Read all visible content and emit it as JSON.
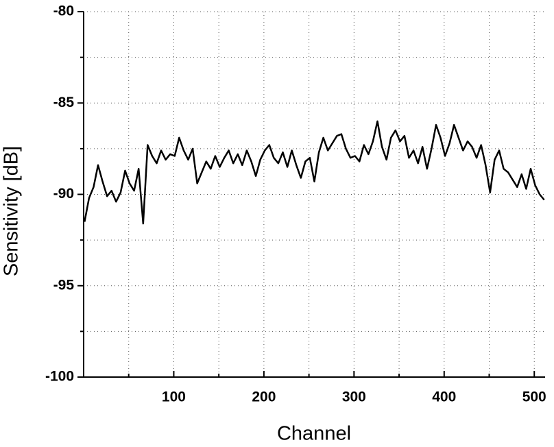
{
  "chart_data": {
    "type": "line",
    "xlabel": "Channel",
    "ylabel": "Sensitivity [dB]",
    "xlim": [
      0,
      512
    ],
    "ylim": [
      -100,
      -80
    ],
    "xticks": [
      100,
      200,
      300,
      400,
      500
    ],
    "xminorticks": [
      50,
      150,
      250,
      350,
      450
    ],
    "yticks": [
      -100,
      -95,
      -90,
      -85,
      -80
    ],
    "yminorticks": [
      -97.5,
      -92.5,
      -87.5,
      -82.5
    ],
    "grid": true,
    "series": [
      {
        "color": "#000000",
        "x": [
          1,
          6,
          11,
          16,
          21,
          26,
          31,
          36,
          41,
          46,
          51,
          56,
          61,
          66,
          71,
          76,
          81,
          86,
          91,
          96,
          101,
          106,
          111,
          116,
          121,
          126,
          131,
          136,
          141,
          146,
          151,
          156,
          161,
          166,
          171,
          176,
          181,
          186,
          191,
          196,
          201,
          206,
          211,
          216,
          221,
          226,
          231,
          236,
          241,
          246,
          251,
          256,
          261,
          266,
          271,
          276,
          281,
          286,
          291,
          296,
          301,
          306,
          311,
          316,
          321,
          326,
          331,
          336,
          341,
          346,
          351,
          356,
          361,
          366,
          371,
          376,
          381,
          386,
          391,
          396,
          401,
          406,
          411,
          416,
          421,
          426,
          431,
          436,
          441,
          446,
          451,
          456,
          461,
          466,
          471,
          476,
          481,
          486,
          491,
          496,
          501,
          506,
          511
        ],
        "values": [
          -91.5,
          -90.2,
          -89.6,
          -88.4,
          -89.3,
          -90.1,
          -89.8,
          -90.4,
          -89.9,
          -88.7,
          -89.4,
          -89.8,
          -88.6,
          -91.6,
          -87.3,
          -87.9,
          -88.3,
          -87.6,
          -88.1,
          -87.8,
          -87.9,
          -86.9,
          -87.6,
          -88.1,
          -87.5,
          -89.4,
          -88.8,
          -88.2,
          -88.6,
          -87.9,
          -88.5,
          -88.0,
          -87.6,
          -88.3,
          -87.8,
          -88.4,
          -87.6,
          -88.2,
          -89.0,
          -88.1,
          -87.6,
          -87.3,
          -88.0,
          -88.3,
          -87.7,
          -88.5,
          -87.6,
          -88.4,
          -89.1,
          -88.2,
          -88.0,
          -89.3,
          -87.7,
          -86.9,
          -87.6,
          -87.2,
          -86.8,
          -86.7,
          -87.5,
          -88.0,
          -87.9,
          -88.2,
          -87.3,
          -87.8,
          -87.1,
          -86.0,
          -87.4,
          -88.1,
          -86.9,
          -86.5,
          -87.1,
          -86.8,
          -88.0,
          -87.6,
          -88.3,
          -87.4,
          -88.6,
          -87.5,
          -86.2,
          -86.9,
          -87.9,
          -87.2,
          -86.2,
          -86.9,
          -87.6,
          -87.1,
          -87.4,
          -88.0,
          -87.3,
          -88.4,
          -89.9,
          -88.1,
          -87.6,
          -88.6,
          -88.8,
          -89.2,
          -89.6,
          -88.9,
          -89.7,
          -88.6,
          -89.5,
          -90.0,
          -90.3
        ]
      }
    ]
  }
}
